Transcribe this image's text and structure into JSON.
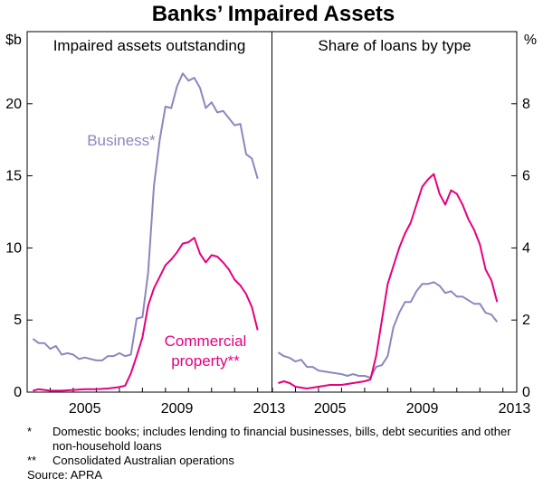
{
  "title": "Banks’ Impaired Assets",
  "colors": {
    "business": "#8b87c0",
    "commercial": "#e6007e"
  },
  "chart_data": [
    {
      "type": "line",
      "title": "Impaired assets outstanding",
      "yunit": "$b",
      "ylim": [
        0,
        25
      ],
      "yticks": [
        "0",
        "5",
        "10",
        "15",
        "20"
      ],
      "xlim": [
        2003.0,
        2013.6
      ],
      "xticks": [
        "2005",
        "2009",
        "2013"
      ],
      "series": [
        {
          "name": "Business*",
          "color": "#8b87c0",
          "points": [
            [
              2003.25,
              3.7
            ],
            [
              2003.5,
              3.4
            ],
            [
              2003.75,
              3.4
            ],
            [
              2004.0,
              3.0
            ],
            [
              2004.25,
              3.2
            ],
            [
              2004.5,
              2.6
            ],
            [
              2004.75,
              2.7
            ],
            [
              2005.0,
              2.6
            ],
            [
              2005.25,
              2.3
            ],
            [
              2005.5,
              2.4
            ],
            [
              2005.75,
              2.3
            ],
            [
              2006.0,
              2.2
            ],
            [
              2006.25,
              2.2
            ],
            [
              2006.5,
              2.5
            ],
            [
              2006.75,
              2.5
            ],
            [
              2007.0,
              2.7
            ],
            [
              2007.25,
              2.5
            ],
            [
              2007.5,
              2.6
            ],
            [
              2007.75,
              5.1
            ],
            [
              2008.0,
              5.2
            ],
            [
              2008.25,
              8.3
            ],
            [
              2008.5,
              14.3
            ],
            [
              2008.75,
              17.5
            ],
            [
              2009.0,
              19.8
            ],
            [
              2009.25,
              19.7
            ],
            [
              2009.5,
              21.2
            ],
            [
              2009.75,
              22.1
            ],
            [
              2010.0,
              21.6
            ],
            [
              2010.25,
              21.8
            ],
            [
              2010.5,
              21.1
            ],
            [
              2010.75,
              19.7
            ],
            [
              2011.0,
              20.1
            ],
            [
              2011.25,
              19.4
            ],
            [
              2011.5,
              19.5
            ],
            [
              2011.75,
              19.0
            ],
            [
              2012.0,
              18.5
            ],
            [
              2012.25,
              18.6
            ],
            [
              2012.5,
              16.5
            ],
            [
              2012.75,
              16.2
            ],
            [
              2013.0,
              14.8
            ]
          ]
        },
        {
          "name": "Commercial property**",
          "color": "#e6007e",
          "points": [
            [
              2003.25,
              0.1
            ],
            [
              2003.5,
              0.2
            ],
            [
              2003.75,
              0.15
            ],
            [
              2004.0,
              0.1
            ],
            [
              2004.5,
              0.1
            ],
            [
              2005.0,
              0.15
            ],
            [
              2005.5,
              0.2
            ],
            [
              2006.0,
              0.2
            ],
            [
              2006.5,
              0.25
            ],
            [
              2007.0,
              0.35
            ],
            [
              2007.25,
              0.45
            ],
            [
              2007.5,
              1.3
            ],
            [
              2007.75,
              2.5
            ],
            [
              2008.0,
              3.8
            ],
            [
              2008.25,
              6.0
            ],
            [
              2008.5,
              7.2
            ],
            [
              2008.75,
              8.0
            ],
            [
              2009.0,
              8.8
            ],
            [
              2009.25,
              9.2
            ],
            [
              2009.5,
              9.7
            ],
            [
              2009.75,
              10.3
            ],
            [
              2010.0,
              10.4
            ],
            [
              2010.25,
              10.7
            ],
            [
              2010.5,
              9.6
            ],
            [
              2010.75,
              9.0
            ],
            [
              2011.0,
              9.5
            ],
            [
              2011.25,
              9.4
            ],
            [
              2011.5,
              9.0
            ],
            [
              2011.75,
              8.5
            ],
            [
              2012.0,
              7.8
            ],
            [
              2012.25,
              7.4
            ],
            [
              2012.5,
              6.8
            ],
            [
              2012.75,
              5.9
            ],
            [
              2013.0,
              4.3
            ]
          ]
        }
      ]
    },
    {
      "type": "line",
      "title": "Share of loans by type",
      "yunit": "%",
      "ylim": [
        0,
        10
      ],
      "yticks": [
        "0",
        "2",
        "4",
        "6",
        "8"
      ],
      "xlim": [
        2003.0,
        2013.6
      ],
      "xticks": [
        "2005",
        "2009",
        "2013"
      ],
      "series": [
        {
          "name": "Business*",
          "color": "#8b87c0",
          "points": [
            [
              2003.25,
              1.1
            ],
            [
              2003.5,
              1.0
            ],
            [
              2003.75,
              0.95
            ],
            [
              2004.0,
              0.85
            ],
            [
              2004.25,
              0.9
            ],
            [
              2004.5,
              0.7
            ],
            [
              2004.75,
              0.7
            ],
            [
              2005.0,
              0.6
            ],
            [
              2005.5,
              0.55
            ],
            [
              2006.0,
              0.5
            ],
            [
              2006.25,
              0.45
            ],
            [
              2006.5,
              0.5
            ],
            [
              2006.75,
              0.45
            ],
            [
              2007.0,
              0.45
            ],
            [
              2007.25,
              0.4
            ],
            [
              2007.5,
              0.7
            ],
            [
              2007.75,
              0.75
            ],
            [
              2008.0,
              1.0
            ],
            [
              2008.25,
              1.8
            ],
            [
              2008.5,
              2.2
            ],
            [
              2008.75,
              2.5
            ],
            [
              2009.0,
              2.5
            ],
            [
              2009.25,
              2.8
            ],
            [
              2009.5,
              3.0
            ],
            [
              2009.75,
              3.0
            ],
            [
              2010.0,
              3.05
            ],
            [
              2010.25,
              2.95
            ],
            [
              2010.5,
              2.75
            ],
            [
              2010.75,
              2.8
            ],
            [
              2011.0,
              2.65
            ],
            [
              2011.25,
              2.65
            ],
            [
              2011.5,
              2.55
            ],
            [
              2011.75,
              2.45
            ],
            [
              2012.0,
              2.45
            ],
            [
              2012.25,
              2.2
            ],
            [
              2012.5,
              2.15
            ],
            [
              2012.75,
              1.95
            ]
          ]
        },
        {
          "name": "Commercial property**",
          "color": "#e6007e",
          "points": [
            [
              2003.25,
              0.25
            ],
            [
              2003.5,
              0.3
            ],
            [
              2003.75,
              0.25
            ],
            [
              2004.0,
              0.15
            ],
            [
              2004.5,
              0.1
            ],
            [
              2005.0,
              0.15
            ],
            [
              2005.5,
              0.2
            ],
            [
              2006.0,
              0.2
            ],
            [
              2006.5,
              0.25
            ],
            [
              2007.0,
              0.3
            ],
            [
              2007.25,
              0.35
            ],
            [
              2007.5,
              1.0
            ],
            [
              2007.75,
              2.0
            ],
            [
              2008.0,
              3.0
            ],
            [
              2008.25,
              3.5
            ],
            [
              2008.5,
              4.0
            ],
            [
              2008.75,
              4.4
            ],
            [
              2009.0,
              4.7
            ],
            [
              2009.25,
              5.2
            ],
            [
              2009.5,
              5.7
            ],
            [
              2009.75,
              5.9
            ],
            [
              2010.0,
              6.05
            ],
            [
              2010.25,
              5.5
            ],
            [
              2010.5,
              5.2
            ],
            [
              2010.75,
              5.6
            ],
            [
              2011.0,
              5.5
            ],
            [
              2011.25,
              5.2
            ],
            [
              2011.5,
              4.8
            ],
            [
              2011.75,
              4.5
            ],
            [
              2012.0,
              4.1
            ],
            [
              2012.25,
              3.4
            ],
            [
              2012.5,
              3.1
            ],
            [
              2012.75,
              2.5
            ]
          ]
        }
      ]
    }
  ],
  "labels": {
    "business": "Business*",
    "commercial_line1": "Commercial",
    "commercial_line2": "property**"
  },
  "footnotes": [
    {
      "mark": "*",
      "text": "Domestic books; includes lending to financial businesses, bills, debt securities and other non-household loans"
    },
    {
      "mark": "**",
      "text": "Consolidated Australian operations"
    }
  ],
  "source": "Source: APRA"
}
